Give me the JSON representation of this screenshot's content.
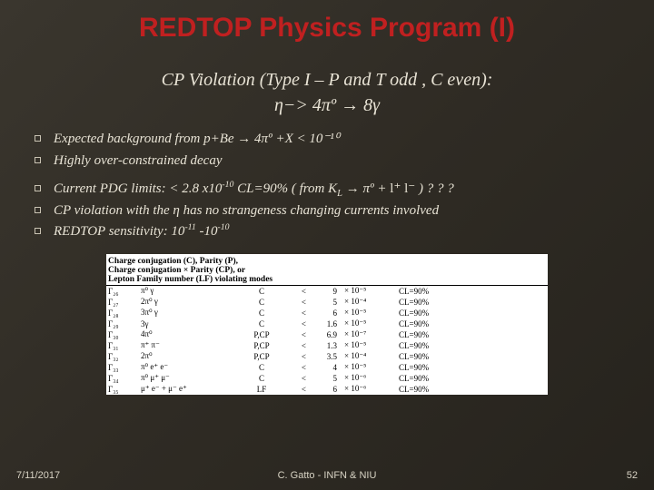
{
  "title": "REDTOP Physics Program (I)",
  "subtitle_line1": "CP Violation (Type I – P and T odd , C even):",
  "subtitle_line2": "η−> 4πº → 8γ",
  "bullets": {
    "b1": "Expected background from p+Be → 4πº +X < 10⁻¹⁰",
    "b2": "Highly  over-constrained decay",
    "b3_pre": "Current PDG limits: < 2.8 x10",
    "b3_exp": "-10",
    "b3_mid": "   CL=90%  ( from K",
    "b3_sub": "L",
    "b3_post1": " → πº + ",
    "b3_lplm": "l⁺ l⁻",
    "b3_post2": " ) ? ? ?",
    "b4": "CP violation with the η has no strangeness changing currents involved",
    "b5_pre": "REDTOP  sensitivity: 10",
    "b5_e1": "-11",
    "b5_mid": " -10",
    "b5_e2": "-10"
  },
  "table": {
    "header": {
      "col1a": "Charge conjugation (C), Parity (P),",
      "col1b": "Charge conjugation × Parity (CP), or",
      "col1c": "Lepton Family number (LF) violating modes"
    },
    "rows": [
      {
        "gamma": "Γ₂₆",
        "mode": "π⁰ γ",
        "tag": "C",
        "lt": "<",
        "val": "9",
        "exp": "× 10⁻⁵",
        "cl": "CL=90%"
      },
      {
        "gamma": "Γ₂₇",
        "mode": "2π⁰ γ",
        "tag": "C",
        "lt": "<",
        "val": "5",
        "exp": "× 10⁻⁴",
        "cl": "CL=90%"
      },
      {
        "gamma": "Γ₂₈",
        "mode": "3π⁰ γ",
        "tag": "C",
        "lt": "<",
        "val": "6",
        "exp": "× 10⁻⁵",
        "cl": "CL=90%"
      },
      {
        "gamma": "Γ₂₉",
        "mode": "3γ",
        "tag": "C",
        "lt": "<",
        "val": "1.6",
        "exp": "× 10⁻⁵",
        "cl": "CL=90%"
      },
      {
        "gamma": "Γ₃₀",
        "mode": "4π⁰",
        "tag": "P,CP",
        "lt": "<",
        "val": "6.9",
        "exp": "× 10⁻⁷",
        "cl": "CL=90%"
      },
      {
        "gamma": "Γ₃₁",
        "mode": "π⁺ π⁻",
        "tag": "P,CP",
        "lt": "<",
        "val": "1.3",
        "exp": "× 10⁻⁵",
        "cl": "CL=90%"
      },
      {
        "gamma": "Γ₃₂",
        "mode": "2π⁰",
        "tag": "P,CP",
        "lt": "<",
        "val": "3.5",
        "exp": "× 10⁻⁴",
        "cl": "CL=90%"
      },
      {
        "gamma": "Γ₃₃",
        "mode": "π⁰ e⁺ e⁻",
        "tag": "C",
        "lt": "<",
        "val": "4",
        "exp": "× 10⁻⁵",
        "cl": "CL=90%"
      },
      {
        "gamma": "Γ₃₄",
        "mode": "π⁰ μ⁺ μ⁻",
        "tag": "C",
        "lt": "<",
        "val": "5",
        "exp": "× 10⁻⁶",
        "cl": "CL=90%"
      },
      {
        "gamma": "Γ₃₅",
        "mode": "μ⁺ e⁻ + μ⁻ e⁺",
        "tag": "LF",
        "lt": "<",
        "val": "6",
        "exp": "× 10⁻⁶",
        "cl": "CL=90%"
      }
    ]
  },
  "footer": {
    "date": "7/11/2017",
    "center": "C. Gatto - INFN & NIU",
    "num": "52"
  },
  "colors": {
    "title": "#c02020",
    "bg_start": "#3a362e",
    "bg_end": "#26231d",
    "text": "#e8e3d5",
    "table_bg": "#ffffff"
  }
}
